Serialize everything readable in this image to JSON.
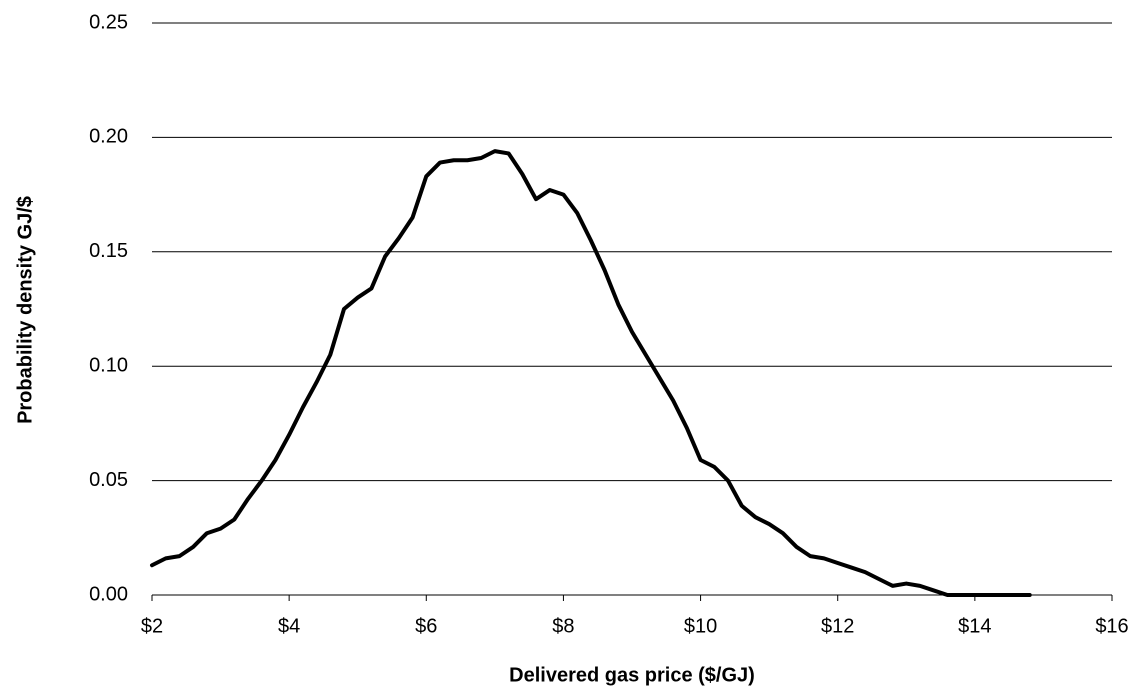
{
  "chart_data": {
    "type": "line",
    "x_label": "Delivered gas price ($/GJ)",
    "y_label": "Probability density GJ/$",
    "x": [
      2.0,
      2.2,
      2.4,
      2.6,
      2.8,
      3.0,
      3.2,
      3.4,
      3.6,
      3.8,
      4.0,
      4.2,
      4.4,
      4.6,
      4.8,
      5.0,
      5.2,
      5.4,
      5.6,
      5.8,
      6.0,
      6.2,
      6.4,
      6.6,
      6.8,
      7.0,
      7.2,
      7.4,
      7.6,
      7.8,
      8.0,
      8.2,
      8.4,
      8.6,
      8.8,
      9.0,
      9.2,
      9.4,
      9.6,
      9.8,
      10.0,
      10.2,
      10.4,
      10.6,
      10.8,
      11.0,
      11.2,
      11.4,
      11.6,
      11.8,
      12.0,
      12.2,
      12.4,
      12.6,
      12.8,
      13.0,
      13.2,
      13.4,
      13.6,
      13.8,
      14.0,
      14.4,
      14.8
    ],
    "series": [
      {
        "color": "#000000",
        "values": [
          0.013,
          0.016,
          0.017,
          0.021,
          0.027,
          0.029,
          0.033,
          0.042,
          0.05,
          0.059,
          0.07,
          0.082,
          0.093,
          0.105,
          0.125,
          0.13,
          0.134,
          0.148,
          0.156,
          0.165,
          0.183,
          0.189,
          0.19,
          0.19,
          0.191,
          0.194,
          0.193,
          0.184,
          0.173,
          0.177,
          0.175,
          0.167,
          0.155,
          0.142,
          0.127,
          0.115,
          0.105,
          0.095,
          0.085,
          0.073,
          0.059,
          0.056,
          0.05,
          0.039,
          0.034,
          0.031,
          0.027,
          0.021,
          0.017,
          0.016,
          0.014,
          0.012,
          0.01,
          0.007,
          0.004,
          0.005,
          0.004,
          0.002,
          0.0,
          0.0,
          0.0,
          0.0,
          0.0
        ]
      }
    ],
    "xlim": [
      2,
      16
    ],
    "xticks": [
      {
        "value": 2,
        "label": "$2"
      },
      {
        "value": 4,
        "label": "$4"
      },
      {
        "value": 6,
        "label": "$6"
      },
      {
        "value": 8,
        "label": "$8"
      },
      {
        "value": 10,
        "label": "$10"
      },
      {
        "value": 12,
        "label": "$12"
      },
      {
        "value": 14,
        "label": "$14"
      },
      {
        "value": 16,
        "label": "$16"
      }
    ],
    "ylim": [
      0,
      0.25
    ],
    "yticks": [
      {
        "value": 0,
        "label": "0.00"
      },
      0.05,
      {
        "value": 0.1,
        "label": "0.10"
      },
      0.15,
      {
        "value": 0.2,
        "label": "0.20"
      },
      0.25
    ],
    "grid": true
  }
}
